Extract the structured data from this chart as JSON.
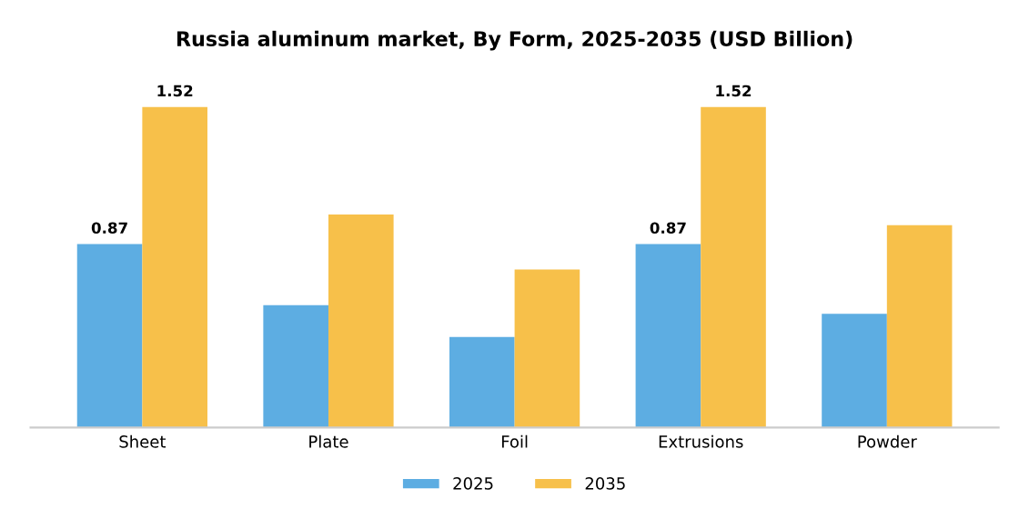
{
  "chart_data": {
    "type": "bar",
    "title": "Russia aluminum market, By Form, 2025-2035 (USD Billion)",
    "categories": [
      "Sheet",
      "Plate",
      "Foil",
      "Extrusions",
      "Powder"
    ],
    "series": [
      {
        "name": "2025",
        "color": "#5dade2",
        "values": [
          0.87,
          0.58,
          0.43,
          0.87,
          0.54
        ],
        "value_labels": [
          "0.87",
          null,
          null,
          "0.87",
          null
        ]
      },
      {
        "name": "2035",
        "color": "#f7c04a",
        "values": [
          1.52,
          1.01,
          0.75,
          1.52,
          0.96
        ],
        "value_labels": [
          "1.52",
          null,
          null,
          "1.52",
          null
        ]
      }
    ],
    "legend": "bottom",
    "grid": false
  }
}
